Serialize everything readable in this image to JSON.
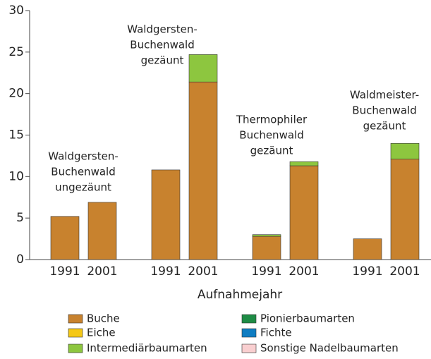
{
  "chart_data": {
    "type": "stacked_bar",
    "categories": [
      "1991",
      "2001",
      "1991",
      "2001",
      "1991",
      "2001",
      "1991",
      "2001"
    ],
    "groups": [
      [
        0,
        1
      ],
      [
        2,
        3
      ],
      [
        4,
        5
      ],
      [
        6,
        7
      ]
    ],
    "series": [
      {
        "name": "Buche",
        "color": "#c8822e",
        "values": [
          5.2,
          6.9,
          10.8,
          21.4,
          2.8,
          11.3,
          2.5,
          12.1
        ]
      },
      {
        "name": "Eiche",
        "color": "#f5c816",
        "values": [
          0,
          0,
          0,
          0,
          0,
          0,
          0,
          0
        ]
      },
      {
        "name": "Intermediärbaumarten",
        "color": "#8dc63f",
        "values": [
          0,
          0,
          0,
          3.3,
          0.2,
          0.5,
          0,
          1.9
        ]
      },
      {
        "name": "Pionierbaumarten",
        "color": "#1e8c45",
        "values": [
          0,
          0,
          0,
          0,
          0,
          0,
          0,
          0
        ]
      },
      {
        "name": "Fichte",
        "color": "#0f7dc2",
        "values": [
          0,
          0,
          0,
          0,
          0,
          0,
          0,
          0
        ]
      },
      {
        "name": "Sonstige Nadelbaumarten",
        "color": "#f9cfd0",
        "values": [
          0,
          0,
          0,
          0,
          0,
          0,
          0,
          0
        ]
      }
    ],
    "annotations": [
      [
        "Waldgersten-",
        "Buchenwald",
        "ungezäunt"
      ],
      [
        "Waldgersten-",
        "Buchenwald",
        "gezäunt"
      ],
      [
        "Thermophiler",
        "Buchenwald",
        "gezäunt"
      ],
      [
        "Waldmeister-",
        "Buchenwald",
        "gezäunt"
      ]
    ],
    "xlabel": "Aufnahmejahr",
    "ylim": [
      0,
      30
    ],
    "yticks": [
      0,
      5,
      10,
      15,
      20,
      25,
      30
    ]
  }
}
